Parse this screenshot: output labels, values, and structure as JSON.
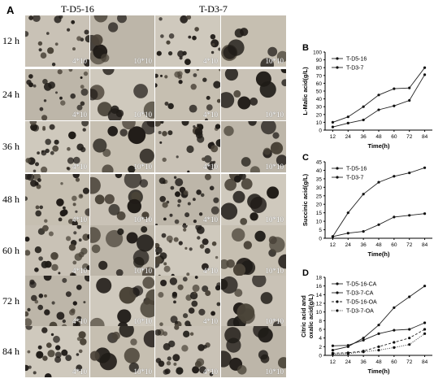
{
  "figure": {
    "panel_a": "A",
    "strain_labels": [
      "T-D5-16",
      "T-D3-7"
    ],
    "time_labels": [
      "12 h",
      "24 h",
      "36 h",
      "48 h",
      "60 h",
      "72 h",
      "84 h"
    ],
    "magnifications": [
      [
        "4*10",
        "10*10",
        "4*10",
        "10*10"
      ],
      [
        "4*10",
        "10*10",
        "4*10",
        "10*10"
      ],
      [
        "4*10",
        "10*10",
        "4*10",
        "10*10"
      ],
      [
        "4*10",
        "10*10",
        "4*10",
        "10*10"
      ],
      [
        "4*10",
        "10*10",
        "4*10",
        "10*10"
      ],
      [
        "4*10",
        "10*10",
        "4*10",
        "10*10"
      ],
      [
        "4*10",
        "10*10",
        "4*10",
        "10*10"
      ]
    ],
    "micrograph_density": [
      0.35,
      0.45,
      0.7,
      0.8,
      0.75,
      0.7,
      0.6
    ]
  },
  "chart_data": [
    {
      "panel": "B",
      "type": "line",
      "x": [
        12,
        24,
        36,
        48,
        60,
        72,
        84
      ],
      "xlabel": "Time(h)",
      "ylabel": "L-Malic acid(g/L)",
      "ylim": [
        0,
        100
      ],
      "yticks": [
        0,
        10,
        20,
        30,
        40,
        50,
        60,
        70,
        80,
        90,
        100
      ],
      "legend_position": "top-left",
      "series": [
        {
          "name": "T-D5-16",
          "values": [
            10,
            17,
            30,
            45,
            53,
            54,
            80
          ],
          "style": "solid",
          "marker": "circle"
        },
        {
          "name": "T-D3-7",
          "values": [
            4,
            9,
            13,
            26,
            31,
            38,
            71
          ],
          "style": "solid",
          "marker": "circle"
        }
      ]
    },
    {
      "panel": "C",
      "type": "line",
      "x": [
        12,
        24,
        36,
        48,
        60,
        72,
        84
      ],
      "xlabel": "Time(h)",
      "ylabel": "Succinic acid(g/L)",
      "ylim": [
        0,
        45
      ],
      "yticks": [
        0,
        5,
        10,
        15,
        20,
        25,
        30,
        35,
        40,
        45
      ],
      "legend_position": "top-left",
      "series": [
        {
          "name": "T-D5-16",
          "values": [
            1,
            15,
            26,
            33,
            36.5,
            38.5,
            41.5
          ],
          "style": "solid",
          "marker": "circle"
        },
        {
          "name": "T-D3-7",
          "values": [
            1,
            3,
            4,
            8,
            12.5,
            13.5,
            14.5
          ],
          "style": "solid",
          "marker": "circle"
        }
      ]
    },
    {
      "panel": "D",
      "type": "line",
      "x": [
        12,
        24,
        36,
        48,
        60,
        72,
        84
      ],
      "xlabel": "Time(h)",
      "ylabel": "Citric acid and oxalic acid(g/L)",
      "ylabel_lines": [
        "Citric acid and",
        "oxalic acid(g/L)"
      ],
      "ylim": [
        0,
        18
      ],
      "yticks": [
        0,
        2,
        4,
        6,
        8,
        10,
        12,
        14,
        16,
        18
      ],
      "legend_position": "top-left",
      "series": [
        {
          "name": "T-D5-16-CA",
          "values": [
            1.2,
            2,
            4,
            7,
            11,
            13.5,
            16
          ],
          "style": "solid",
          "marker": "circle"
        },
        {
          "name": "T-D3-7-CA",
          "values": [
            2.2,
            2.3,
            3.5,
            5,
            5.8,
            6,
            7.5
          ],
          "style": "solid",
          "marker": "circle"
        },
        {
          "name": "T-D5-16-OA",
          "values": [
            0.5,
            0.6,
            1,
            2,
            3,
            4,
            6
          ],
          "style": "dashed",
          "marker": "circle"
        },
        {
          "name": "T-D3-7-OA",
          "values": [
            0.3,
            0.4,
            0.8,
            1.2,
            1.8,
            2.5,
            5
          ],
          "style": "dotted",
          "marker": "circle"
        }
      ]
    }
  ]
}
